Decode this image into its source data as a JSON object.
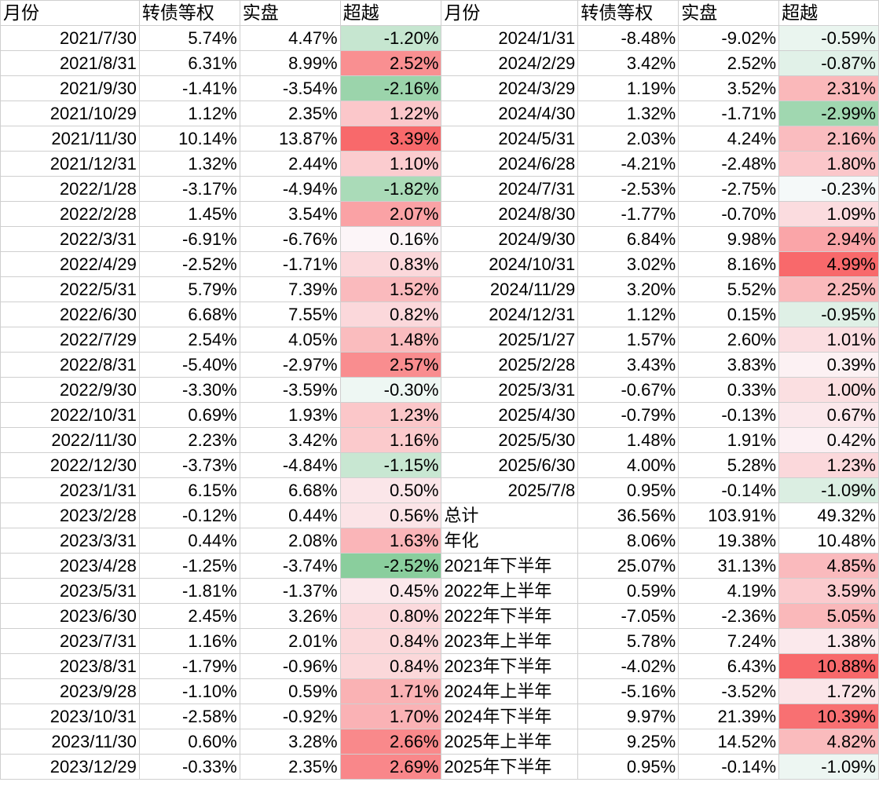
{
  "headers": [
    "月份",
    "转债等权",
    "实盘",
    "超越",
    "月份",
    "转债等权",
    "实盘",
    "超越"
  ],
  "rows": [
    {
      "l": [
        "2021/7/30",
        "5.74%",
        "4.47%",
        "-1.20%"
      ],
      "r": [
        "2024/1/31",
        "-8.48%",
        "-9.02%",
        "-0.59%"
      ]
    },
    {
      "l": [
        "2021/8/31",
        "6.31%",
        "8.99%",
        "2.52%"
      ],
      "r": [
        "2024/2/29",
        "3.42%",
        "2.52%",
        "-0.87%"
      ]
    },
    {
      "l": [
        "2021/9/30",
        "-1.41%",
        "-3.54%",
        "-2.16%"
      ],
      "r": [
        "2024/3/29",
        "1.19%",
        "3.52%",
        "2.31%"
      ]
    },
    {
      "l": [
        "2021/10/29",
        "1.12%",
        "2.35%",
        "1.22%"
      ],
      "r": [
        "2024/4/30",
        "1.32%",
        "-1.71%",
        "-2.99%"
      ]
    },
    {
      "l": [
        "2021/11/30",
        "10.14%",
        "13.87%",
        "3.39%"
      ],
      "r": [
        "2024/5/31",
        "2.03%",
        "4.24%",
        "2.16%"
      ]
    },
    {
      "l": [
        "2021/12/31",
        "1.32%",
        "2.44%",
        "1.10%"
      ],
      "r": [
        "2024/6/28",
        "-4.21%",
        "-2.48%",
        "1.80%"
      ]
    },
    {
      "l": [
        "2022/1/28",
        "-3.17%",
        "-4.94%",
        "-1.82%"
      ],
      "r": [
        "2024/7/31",
        "-2.53%",
        "-2.75%",
        "-0.23%"
      ]
    },
    {
      "l": [
        "2022/2/28",
        "1.45%",
        "3.54%",
        "2.07%"
      ],
      "r": [
        "2024/8/30",
        "-1.77%",
        "-0.70%",
        "1.09%"
      ]
    },
    {
      "l": [
        "2022/3/31",
        "-6.91%",
        "-6.76%",
        "0.16%"
      ],
      "r": [
        "2024/9/30",
        "6.84%",
        "9.98%",
        "2.94%"
      ]
    },
    {
      "l": [
        "2022/4/29",
        "-2.52%",
        "-1.71%",
        "0.83%"
      ],
      "r": [
        "2024/10/31",
        "3.02%",
        "8.16%",
        "4.99%"
      ]
    },
    {
      "l": [
        "2022/5/31",
        "5.79%",
        "7.39%",
        "1.52%"
      ],
      "r": [
        "2024/11/29",
        "3.20%",
        "5.52%",
        "2.25%"
      ]
    },
    {
      "l": [
        "2022/6/30",
        "6.68%",
        "7.55%",
        "0.82%"
      ],
      "r": [
        "2024/12/31",
        "1.12%",
        "0.15%",
        "-0.95%"
      ]
    },
    {
      "l": [
        "2022/7/29",
        "2.54%",
        "4.05%",
        "1.48%"
      ],
      "r": [
        "2025/1/27",
        "1.57%",
        "2.60%",
        "1.01%"
      ]
    },
    {
      "l": [
        "2022/8/31",
        "-5.40%",
        "-2.97%",
        "2.57%"
      ],
      "r": [
        "2025/2/28",
        "3.43%",
        "3.83%",
        "0.39%"
      ]
    },
    {
      "l": [
        "2022/9/30",
        "-3.30%",
        "-3.59%",
        "-0.30%"
      ],
      "r": [
        "2025/3/31",
        "-0.67%",
        "0.33%",
        "1.00%"
      ]
    },
    {
      "l": [
        "2022/10/31",
        "0.69%",
        "1.93%",
        "1.23%"
      ],
      "r": [
        "2025/4/30",
        "-0.79%",
        "-0.13%",
        "0.67%"
      ]
    },
    {
      "l": [
        "2022/11/30",
        "2.23%",
        "3.42%",
        "1.16%"
      ],
      "r": [
        "2025/5/30",
        "1.48%",
        "1.91%",
        "0.42%"
      ]
    },
    {
      "l": [
        "2022/12/30",
        "-3.73%",
        "-4.84%",
        "-1.15%"
      ],
      "r": [
        "2025/6/30",
        "4.00%",
        "5.28%",
        "1.23%"
      ]
    },
    {
      "l": [
        "2023/1/31",
        "6.15%",
        "6.68%",
        "0.50%"
      ],
      "r": [
        "2025/7/8",
        "0.95%",
        "-0.14%",
        "-1.09%"
      ]
    },
    {
      "l": [
        "2023/2/28",
        "-0.12%",
        "0.44%",
        "0.56%"
      ],
      "r": [
        "总计",
        "36.56%",
        "103.91%",
        "49.32%"
      ],
      "rl": true
    },
    {
      "l": [
        "2023/3/31",
        "0.44%",
        "2.08%",
        "1.63%"
      ],
      "r": [
        "年化",
        "8.06%",
        "19.38%",
        "10.48%"
      ],
      "rl": true
    },
    {
      "l": [
        "2023/4/28",
        "-1.25%",
        "-3.74%",
        "-2.52%"
      ],
      "r": [
        "2021年下半年",
        "25.07%",
        "31.13%",
        "4.85%"
      ],
      "rl": true
    },
    {
      "l": [
        "2023/5/31",
        "-1.81%",
        "-1.37%",
        "0.45%"
      ],
      "r": [
        "2022年上半年",
        "0.59%",
        "4.19%",
        "3.59%"
      ],
      "rl": true
    },
    {
      "l": [
        "2023/6/30",
        "2.45%",
        "3.26%",
        "0.80%"
      ],
      "r": [
        "2022年下半年",
        "-7.05%",
        "-2.36%",
        "5.05%"
      ],
      "rl": true
    },
    {
      "l": [
        "2023/7/31",
        "1.16%",
        "2.01%",
        "0.84%"
      ],
      "r": [
        "2023年上半年",
        "5.78%",
        "7.24%",
        "1.38%"
      ],
      "rl": true
    },
    {
      "l": [
        "2023/8/31",
        "-1.79%",
        "-0.96%",
        "0.84%"
      ],
      "r": [
        "2023年下半年",
        "-4.02%",
        "6.43%",
        "10.88%"
      ],
      "rl": true
    },
    {
      "l": [
        "2023/9/28",
        "-1.10%",
        "0.59%",
        "1.71%"
      ],
      "r": [
        "2024年上半年",
        "-5.16%",
        "-3.52%",
        "1.72%"
      ],
      "rl": true
    },
    {
      "l": [
        "2023/10/31",
        "-2.58%",
        "-0.92%",
        "1.70%"
      ],
      "r": [
        "2024年下半年",
        "9.97%",
        "21.39%",
        "10.39%"
      ],
      "rl": true
    },
    {
      "l": [
        "2023/11/30",
        "0.60%",
        "3.28%",
        "2.66%"
      ],
      "r": [
        "2025年上半年",
        "9.25%",
        "14.52%",
        "4.82%"
      ],
      "rl": true
    },
    {
      "l": [
        "2023/12/29",
        "-0.33%",
        "2.35%",
        "2.69%"
      ],
      "r": [
        "2025年下半年",
        "0.95%",
        "-0.14%",
        "-1.09%"
      ],
      "rl": true
    }
  ],
  "colors": {
    "positive": "#f8696b",
    "negative": "#63be7b",
    "neutral": "#fcfcff",
    "grid": "#cfcfcf"
  }
}
